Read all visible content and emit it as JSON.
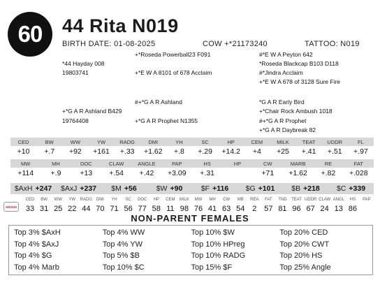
{
  "lot": "60",
  "animal": {
    "name": "44 Rita N019",
    "birth_date": "BIRTH DATE: 01-08-2025",
    "registration": "COW +*21173240",
    "tattoo": "TATTOO: N019"
  },
  "pedigree": {
    "sire": "*44 Hayday 008",
    "sire_reg": "19803741",
    "sire_sire": "+*Roseda Powerball23 F091",
    "sire_dam": "+*E W A 8101 of 678 Acclaim",
    "sire_dam_sire": "#*E W A Peyton 642",
    "sire_dam_sire2": "*Roseda Blackcap B103 D118",
    "sire_dam_dam": "#*Jindra Acclaim",
    "sire_dam_dam2": "+*E W A 678 of 3128 Sure Fire",
    "dam": "+*G A R Ashland B429",
    "dam_reg": "19764408",
    "dam_sire": "#+*G A R Ashland",
    "dam_dam": "+*G A R Prophet N1355",
    "dam_sire_sire": "*G A R Early Bird",
    "dam_sire_dam": "+*Chair Rock Ambush 1018",
    "dam_dam_sire": "#+*G A R Prophet",
    "dam_dam_dam": "+*G A R Daybreak 82"
  },
  "epd_row1": {
    "labels": [
      "CED",
      "BW",
      "WW",
      "YW",
      "RADG",
      "DMI",
      "YH",
      "SC",
      "HP",
      "CEM",
      "MILK",
      "TEAT",
      "UDDR",
      "FL"
    ],
    "values": [
      "+10",
      "+.7",
      "+92",
      "+161",
      "+.33",
      "+1.62",
      "+.8",
      "+.29",
      "+14.2",
      "+4",
      "+25",
      "+.41",
      "+.51",
      "+.97"
    ]
  },
  "epd_row2": {
    "labels": [
      "MW",
      "MH",
      "DOC",
      "CLAW",
      "ANGLE",
      "PAP",
      "HS",
      "HP",
      "CW",
      "MARB",
      "RE",
      "FAT"
    ],
    "values": [
      "+114",
      "+.9",
      "+13",
      "+.54",
      "+.42",
      "+3.09",
      "+.31",
      "",
      "+71",
      "+1.62",
      "+.82",
      "+.028"
    ]
  },
  "indexes": [
    {
      "k": "$AxH",
      "v": "+247"
    },
    {
      "k": "$AxJ",
      "v": "+237"
    },
    {
      "k": "$M",
      "v": "+56"
    },
    {
      "k": "$W",
      "v": "+90"
    },
    {
      "k": "$F",
      "v": "+116"
    },
    {
      "k": "$G",
      "v": "+101"
    },
    {
      "k": "$B",
      "v": "+218"
    },
    {
      "k": "$C",
      "v": "+339"
    }
  ],
  "percentiles": {
    "logo_text": "ANGUS",
    "labels": [
      "CED",
      "BW",
      "WW",
      "YW",
      "RADG",
      "DMI",
      "YH",
      "SC",
      "DOC",
      "HP",
      "CEM",
      "MILK",
      "MW",
      "MH",
      "CW",
      "MB",
      "REA",
      "FAT",
      "TND",
      "TEAT",
      "UDDR",
      "CLAW",
      "ANGL",
      "HS",
      "PAP"
    ],
    "values": [
      "33",
      "31",
      "25",
      "22",
      "44",
      "70",
      "71",
      "56",
      "77",
      "58",
      "11",
      "98",
      "76",
      "41",
      "63",
      "54",
      "2",
      "57",
      "81",
      "96",
      "67",
      "24",
      "13",
      "86",
      ""
    ]
  },
  "non_parent": {
    "title": "NON-PARENT FEMALES",
    "items": [
      "Top 3% $AxH",
      "Top 4% $AxJ",
      "Top 4% $G",
      "Top 4% Marb",
      "Top 4% WW",
      "Top 4% YW",
      "Top 5% $B",
      "Top 10% $C",
      "Top 10% $W",
      "Top 10% HPreg",
      "Top 10% RADG",
      "Top 15% $F",
      "Top 20% CED",
      "Top 20% CWT",
      "Top 20% HS",
      "Top 25% Angle"
    ]
  }
}
